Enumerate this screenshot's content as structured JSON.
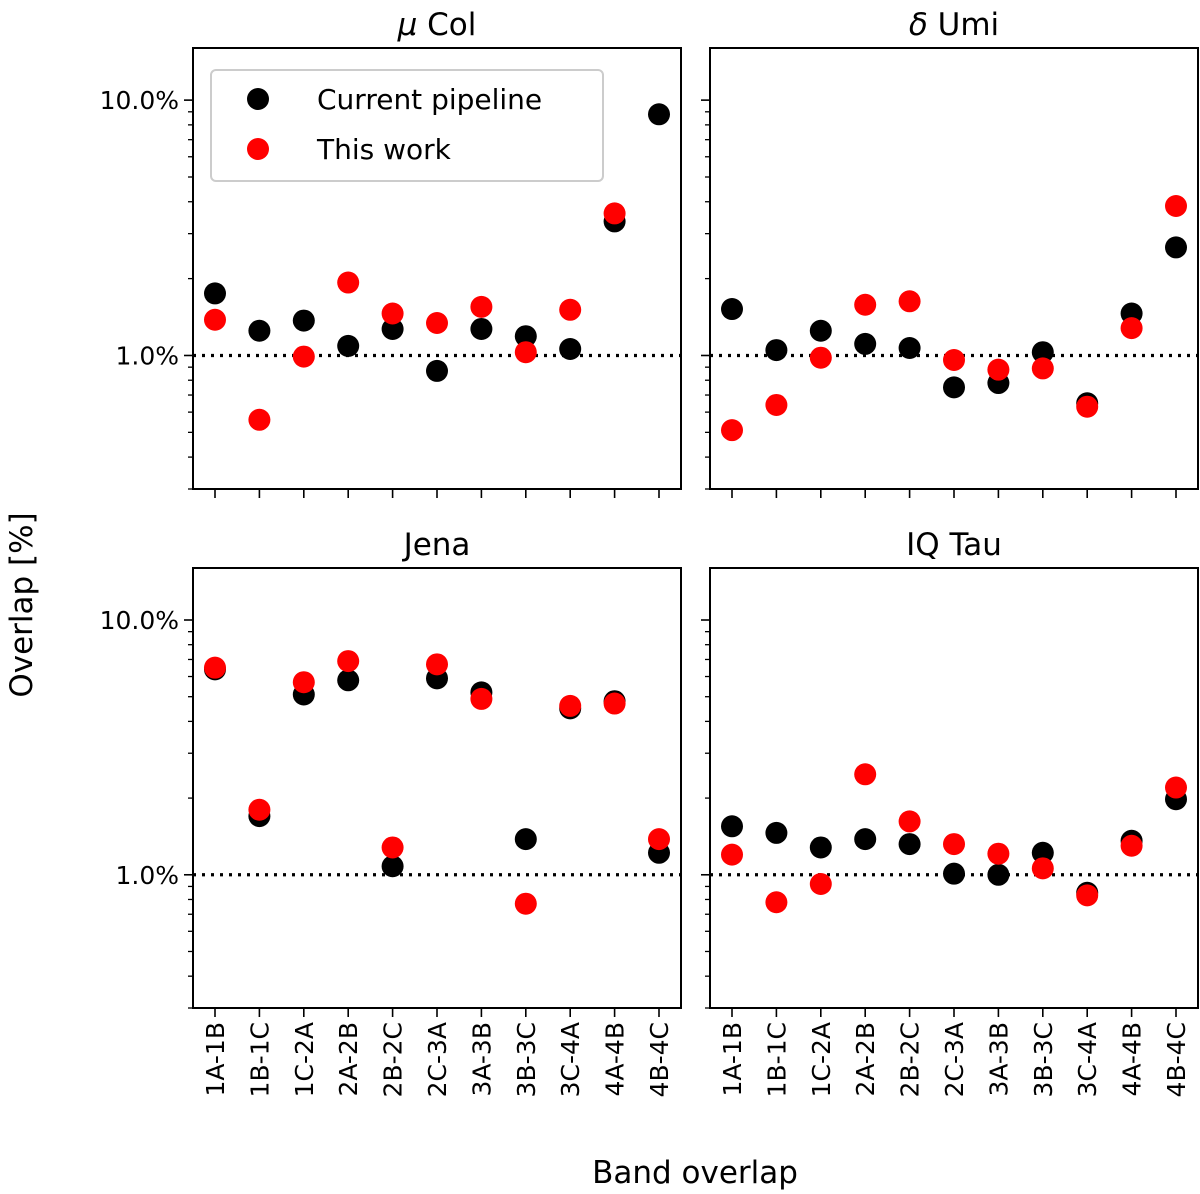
{
  "figure": {
    "xlabel": "Band overlap",
    "ylabel": "Overlap [%]"
  },
  "legend": {
    "position": "top-left of first panel",
    "entries": [
      {
        "label": "Current pipeline",
        "color": "#000000"
      },
      {
        "label": "This work",
        "color": "#ff0000"
      }
    ]
  },
  "chart_data": [
    {
      "type": "scatter",
      "title": "μ Col",
      "title_prefix": "μ",
      "title_main": "Col",
      "yscale": "log",
      "ylim": [
        0.3,
        16
      ],
      "yticks": [
        {
          "value": 1,
          "label": "1.0%"
        },
        {
          "value": 10,
          "label": "10.0%"
        }
      ],
      "reference_line": 1,
      "categories": [
        "1A-1B",
        "1B-1C",
        "1C-2A",
        "2A-2B",
        "2B-2C",
        "2C-3A",
        "3A-3B",
        "3B-3C",
        "3C-4A",
        "4A-4B",
        "4B-4C"
      ],
      "series": [
        {
          "name": "Current pipeline",
          "color": "#000000",
          "values": [
            1.75,
            1.25,
            1.37,
            1.09,
            1.27,
            0.87,
            1.27,
            1.19,
            1.06,
            3.35,
            8.8
          ]
        },
        {
          "name": "This work",
          "color": "#ff0000",
          "values": [
            1.38,
            0.56,
            0.99,
            1.93,
            1.46,
            1.34,
            1.55,
            1.03,
            1.51,
            3.6,
            null
          ]
        }
      ]
    },
    {
      "type": "scatter",
      "title": "δ Umi",
      "title_prefix": "δ",
      "title_main": "Umi",
      "yscale": "log",
      "ylim": [
        0.3,
        16
      ],
      "yticks": [
        {
          "value": 1,
          "label": "1.0%"
        },
        {
          "value": 10,
          "label": "10.0%"
        }
      ],
      "reference_line": 1,
      "categories": [
        "1A-1B",
        "1B-1C",
        "1C-2A",
        "2A-2B",
        "2B-2C",
        "2C-3A",
        "3A-3B",
        "3B-3C",
        "3C-4A",
        "4A-4B",
        "4B-4C"
      ],
      "series": [
        {
          "name": "Current pipeline",
          "color": "#000000",
          "values": [
            1.52,
            1.05,
            1.25,
            1.11,
            1.07,
            0.75,
            0.78,
            1.03,
            0.65,
            1.46,
            2.65
          ]
        },
        {
          "name": "This work",
          "color": "#ff0000",
          "values": [
            0.51,
            0.64,
            0.98,
            1.58,
            1.63,
            0.96,
            0.88,
            0.89,
            0.63,
            1.28,
            3.85
          ]
        }
      ]
    },
    {
      "type": "scatter",
      "title": "Jena",
      "title_prefix": "",
      "title_main": "Jena",
      "yscale": "log",
      "ylim": [
        0.3,
        16
      ],
      "yticks": [
        {
          "value": 1,
          "label": "1.0%"
        },
        {
          "value": 10,
          "label": "10.0%"
        }
      ],
      "reference_line": 1,
      "categories": [
        "1A-1B",
        "1B-1C",
        "1C-2A",
        "2A-2B",
        "2B-2C",
        "2C-3A",
        "3A-3B",
        "3B-3C",
        "3C-4A",
        "4A-4B",
        "4B-4C"
      ],
      "series": [
        {
          "name": "Current pipeline",
          "color": "#000000",
          "values": [
            6.4,
            1.7,
            5.1,
            5.8,
            1.08,
            5.9,
            5.2,
            1.38,
            4.5,
            4.8,
            1.22
          ]
        },
        {
          "name": "This work",
          "color": "#ff0000",
          "values": [
            6.5,
            1.8,
            5.7,
            6.9,
            1.28,
            6.7,
            4.9,
            0.77,
            4.6,
            4.7,
            1.38
          ]
        }
      ]
    },
    {
      "type": "scatter",
      "title": "IQ Tau",
      "title_prefix": "",
      "title_main": "IQ Tau",
      "yscale": "log",
      "ylim": [
        0.3,
        16
      ],
      "yticks": [
        {
          "value": 1,
          "label": "1.0%"
        },
        {
          "value": 10,
          "label": "10.0%"
        }
      ],
      "reference_line": 1,
      "categories": [
        "1A-1B",
        "1B-1C",
        "1C-2A",
        "2A-2B",
        "2B-2C",
        "2C-3A",
        "3A-3B",
        "3B-3C",
        "3C-4A",
        "4A-4B",
        "4B-4C"
      ],
      "series": [
        {
          "name": "Current pipeline",
          "color": "#000000",
          "values": [
            1.55,
            1.46,
            1.28,
            1.38,
            1.32,
            1.01,
            1.0,
            1.22,
            0.85,
            1.36,
            1.98
          ]
        },
        {
          "name": "This work",
          "color": "#ff0000",
          "values": [
            1.2,
            0.78,
            0.92,
            2.48,
            1.62,
            1.32,
            1.21,
            1.06,
            0.83,
            1.3,
            2.2
          ]
        }
      ]
    }
  ]
}
